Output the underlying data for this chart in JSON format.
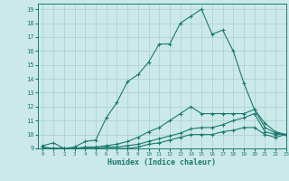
{
  "xlabel": "Humidex (Indice chaleur)",
  "ylabel": "",
  "bg_color": "#cce9e9",
  "grid_color": "#aacfcf",
  "line_color": "#1a7a6e",
  "xlim": [
    -0.5,
    23
  ],
  "ylim": [
    9,
    19.4
  ],
  "xticks": [
    0,
    1,
    2,
    3,
    4,
    5,
    6,
    7,
    8,
    9,
    10,
    11,
    12,
    13,
    14,
    15,
    16,
    17,
    18,
    19,
    20,
    21,
    22,
    23
  ],
  "yticks": [
    9,
    10,
    11,
    12,
    13,
    14,
    15,
    16,
    17,
    18,
    19
  ],
  "lines": [
    {
      "x": [
        0,
        1,
        2,
        3,
        4,
        5,
        6,
        7,
        8,
        9,
        10,
        11,
        12,
        13,
        14,
        15,
        16,
        17,
        18,
        19,
        20,
        21,
        22,
        23
      ],
      "y": [
        9.2,
        9.4,
        9.0,
        9.1,
        9.5,
        9.6,
        11.2,
        12.3,
        13.8,
        14.3,
        15.2,
        16.5,
        16.5,
        18.0,
        18.5,
        19.0,
        17.2,
        17.5,
        16.0,
        13.7,
        11.8,
        10.5,
        10.1,
        10.0
      ]
    },
    {
      "x": [
        0,
        1,
        2,
        3,
        4,
        5,
        6,
        7,
        8,
        9,
        10,
        11,
        12,
        13,
        14,
        15,
        16,
        17,
        18,
        19,
        20,
        21,
        22,
        23
      ],
      "y": [
        9.1,
        9.0,
        9.0,
        9.0,
        9.1,
        9.1,
        9.2,
        9.3,
        9.5,
        9.8,
        10.2,
        10.5,
        11.0,
        11.5,
        12.0,
        11.5,
        11.5,
        11.5,
        11.5,
        11.5,
        11.8,
        10.8,
        10.2,
        10.0
      ]
    },
    {
      "x": [
        0,
        1,
        2,
        3,
        4,
        5,
        6,
        7,
        8,
        9,
        10,
        11,
        12,
        13,
        14,
        15,
        16,
        17,
        18,
        19,
        20,
        21,
        22,
        23
      ],
      "y": [
        9.0,
        9.0,
        9.0,
        9.0,
        9.0,
        9.0,
        9.1,
        9.1,
        9.2,
        9.3,
        9.5,
        9.7,
        9.9,
        10.1,
        10.4,
        10.5,
        10.5,
        10.7,
        11.0,
        11.2,
        11.5,
        10.2,
        10.0,
        10.0
      ]
    },
    {
      "x": [
        0,
        1,
        2,
        3,
        4,
        5,
        6,
        7,
        8,
        9,
        10,
        11,
        12,
        13,
        14,
        15,
        16,
        17,
        18,
        19,
        20,
        21,
        22,
        23
      ],
      "y": [
        9.0,
        9.0,
        9.0,
        9.0,
        9.0,
        9.0,
        9.0,
        9.0,
        9.0,
        9.1,
        9.3,
        9.4,
        9.6,
        9.8,
        10.0,
        10.0,
        10.0,
        10.2,
        10.3,
        10.5,
        10.5,
        10.0,
        9.8,
        10.0
      ]
    }
  ]
}
